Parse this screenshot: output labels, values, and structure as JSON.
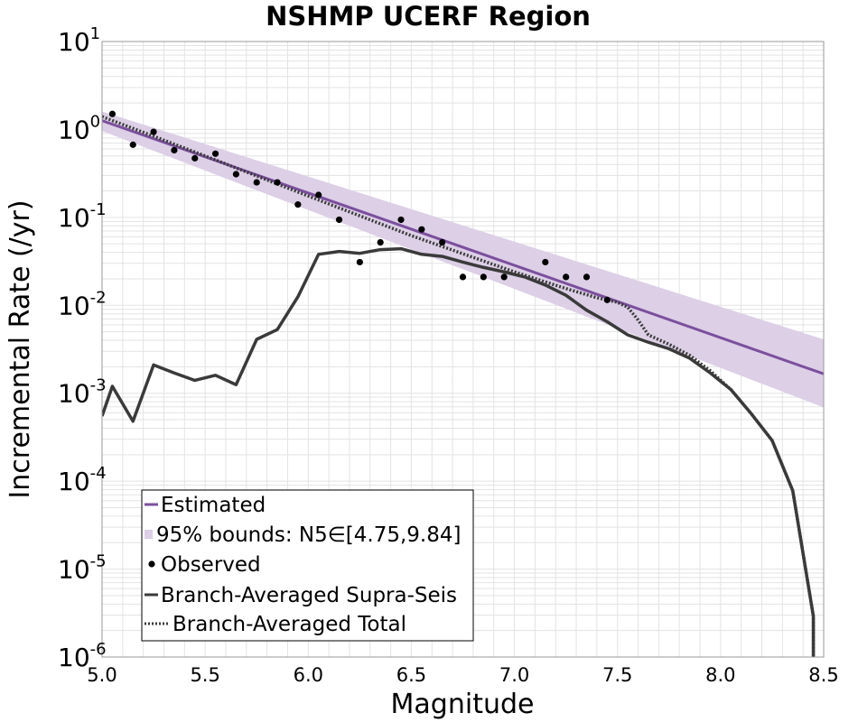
{
  "chart_data": {
    "type": "line",
    "title": "NSHMP UCERF Region",
    "xlabel": "Magnitude",
    "ylabel": "Incremental Rate (/yr)",
    "xlim": [
      5.0,
      8.5
    ],
    "ylim": [
      1e-06,
      10
    ],
    "yscale": "log",
    "grid": true,
    "legend_position": "bottom-left",
    "x_ticks": [
      "5.0",
      "5.5",
      "6.0",
      "6.5",
      "7.0",
      "7.5",
      "8.0",
      "8.5"
    ],
    "y_ticks": [
      {
        "base": "10",
        "exp": "1"
      },
      {
        "base": "10",
        "exp": "0"
      },
      {
        "base": "10",
        "exp": "-1"
      },
      {
        "base": "10",
        "exp": "-2"
      },
      {
        "base": "10",
        "exp": "-3"
      },
      {
        "base": "10",
        "exp": "-4"
      },
      {
        "base": "10",
        "exp": "-5"
      },
      {
        "base": "10",
        "exp": "-6"
      }
    ],
    "colors": {
      "estimated": "#7b4f9d",
      "bounds": "#dccfe6",
      "observed": "#000000",
      "supra": "#3a3a3a",
      "total": "#3a3a3a",
      "grid": "#e3e3e3"
    },
    "legend": [
      {
        "key": "estimated",
        "label": "Estimated"
      },
      {
        "key": "bounds",
        "label": "95% bounds: N5∈[4.75,9.84]"
      },
      {
        "key": "observed",
        "label": "Observed"
      },
      {
        "key": "supra",
        "label": "Branch-Averaged Supra-Seis"
      },
      {
        "key": "total",
        "label": "Branch-Averaged Total"
      }
    ],
    "series": [
      {
        "name": "Estimated",
        "type": "line",
        "x": [
          5.0,
          8.5
        ],
        "y": [
          1.26,
          0.00166
        ]
      },
      {
        "name": "95% bounds: N5∈[4.75,9.84]",
        "type": "band",
        "x": [
          5.0,
          8.5
        ],
        "lower": [
          0.96,
          0.00069
        ],
        "upper": [
          1.6,
          0.0041
        ]
      },
      {
        "name": "Observed",
        "type": "scatter",
        "x": [
          5.05,
          5.15,
          5.25,
          5.35,
          5.45,
          5.55,
          5.65,
          5.75,
          5.85,
          5.95,
          6.05,
          6.15,
          6.25,
          6.35,
          6.45,
          6.55,
          6.65,
          6.75,
          6.85,
          6.95,
          7.15,
          7.25,
          7.35,
          7.45
        ],
        "y": [
          1.5,
          0.67,
          0.94,
          0.58,
          0.47,
          0.53,
          0.31,
          0.25,
          0.25,
          0.14,
          0.18,
          0.094,
          0.031,
          0.052,
          0.094,
          0.073,
          0.052,
          0.021,
          0.021,
          0.021,
          0.031,
          0.021,
          0.021,
          0.0115
        ]
      },
      {
        "name": "Branch-Averaged Supra-Seis",
        "type": "line",
        "x": [
          5.0,
          5.05,
          5.15,
          5.25,
          5.35,
          5.45,
          5.55,
          5.65,
          5.75,
          5.85,
          5.95,
          6.05,
          6.15,
          6.25,
          6.35,
          6.45,
          6.55,
          6.65,
          6.75,
          6.85,
          6.95,
          7.05,
          7.15,
          7.25,
          7.35,
          7.45,
          7.55,
          7.65,
          7.75,
          7.85,
          7.95,
          8.05,
          8.15,
          8.25,
          8.35,
          8.45,
          8.45
        ],
        "y": [
          0.00055,
          0.0012,
          0.00048,
          0.0021,
          0.0017,
          0.0014,
          0.0016,
          0.00125,
          0.0041,
          0.0053,
          0.0125,
          0.038,
          0.041,
          0.039,
          0.043,
          0.044,
          0.038,
          0.036,
          0.031,
          0.027,
          0.024,
          0.021,
          0.017,
          0.013,
          0.0088,
          0.0065,
          0.0046,
          0.0038,
          0.0032,
          0.0025,
          0.0017,
          0.0011,
          0.00058,
          0.00029,
          7.8e-05,
          2.9e-06,
          1e-06
        ]
      },
      {
        "name": "Branch-Averaged Total",
        "type": "line",
        "x": [
          5.0,
          5.5,
          6.0,
          6.5,
          7.0,
          7.25,
          7.4,
          7.5,
          7.55,
          7.6,
          7.65,
          7.75,
          7.85,
          7.95,
          8.05,
          8.15,
          8.25,
          8.35,
          8.45,
          8.45
        ],
        "y": [
          1.4,
          0.5,
          0.175,
          0.062,
          0.024,
          0.0155,
          0.0122,
          0.0108,
          0.0095,
          0.0068,
          0.0046,
          0.0036,
          0.0027,
          0.0018,
          0.0011,
          0.00058,
          0.00029,
          7.8e-05,
          2.9e-06,
          1e-06
        ]
      }
    ]
  }
}
